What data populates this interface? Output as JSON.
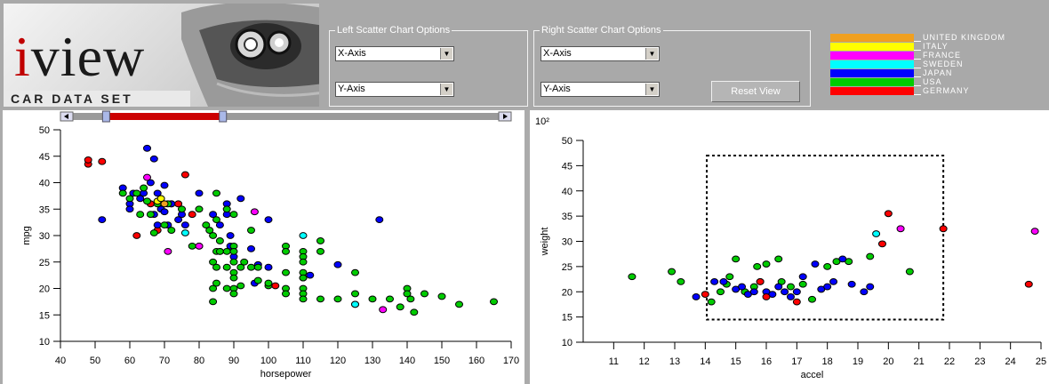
{
  "logo": {
    "word_first": "i",
    "word_rest": "view",
    "subtitle": "CAR DATA SET"
  },
  "left_options": {
    "legend": "Left Scatter Chart Options",
    "x_select": "X-Axis",
    "y_select": "Y-Axis"
  },
  "right_options": {
    "legend": "Right Scatter Chart Options",
    "x_select": "X-Axis",
    "y_select": "Y-Axis",
    "reset_label": "Reset View"
  },
  "origin_legend": [
    {
      "name": "UNITED KINGDOM",
      "color": "#f0a020"
    },
    {
      "name": "ITALY",
      "color": "#ffff00"
    },
    {
      "name": "FRANCE",
      "color": "#ff00ff"
    },
    {
      "name": "SWEDEN",
      "color": "#00ffff"
    },
    {
      "name": "JAPAN",
      "color": "#0000ff"
    },
    {
      "name": "USA",
      "color": "#00cc00"
    },
    {
      "name": "GERMANY",
      "color": "#ff0000"
    }
  ],
  "icons": {
    "scroll_left": "chevron-left-icon",
    "scroll_right": "chevron-right-icon",
    "dropdown": "chevron-down-icon"
  },
  "range_slider": {
    "min": 40,
    "max": 170,
    "selected_min": 50,
    "selected_max": 85
  },
  "chart_data": [
    {
      "type": "scatter",
      "xlabel": "horsepower",
      "ylabel": "mpg",
      "xlim": [
        40,
        170
      ],
      "ylim": [
        10,
        50
      ],
      "xticks": [
        40,
        50,
        60,
        70,
        80,
        90,
        100,
        110,
        120,
        130,
        140,
        150,
        160,
        170
      ],
      "yticks": [
        10,
        15,
        20,
        25,
        30,
        35,
        40,
        45,
        50
      ],
      "series": [
        {
          "color": "#ff0000",
          "points": [
            [
              48,
              43.5
            ],
            [
              48,
              44.3
            ],
            [
              52,
              44
            ],
            [
              62,
              30
            ],
            [
              66,
              36
            ],
            [
              68,
              31
            ],
            [
              72,
              36
            ],
            [
              74,
              36
            ],
            [
              76,
              41.5
            ],
            [
              78,
              34
            ],
            [
              80,
              28
            ],
            [
              102,
              20.5
            ]
          ]
        },
        {
          "color": "#0000ff",
          "points": [
            [
              52,
              33
            ],
            [
              58,
              39
            ],
            [
              60,
              36
            ],
            [
              60,
              35
            ],
            [
              61,
              38
            ],
            [
              63,
              37
            ],
            [
              64,
              38
            ],
            [
              65,
              46.5
            ],
            [
              66,
              40
            ],
            [
              67,
              44.5
            ],
            [
              67,
              34
            ],
            [
              68,
              38
            ],
            [
              68,
              32
            ],
            [
              69,
              35
            ],
            [
              70,
              39.5
            ],
            [
              70,
              34.5
            ],
            [
              71,
              32
            ],
            [
              72,
              36
            ],
            [
              74,
              33
            ],
            [
              75,
              34
            ],
            [
              76,
              32
            ],
            [
              80,
              38
            ],
            [
              84,
              34
            ],
            [
              86,
              32
            ],
            [
              86,
              27
            ],
            [
              88,
              36
            ],
            [
              88,
              34
            ],
            [
              89,
              30
            ],
            [
              89,
              28
            ],
            [
              90,
              26
            ],
            [
              92,
              37
            ],
            [
              95,
              27.5
            ],
            [
              96,
              21
            ],
            [
              97,
              24.5
            ],
            [
              100,
              33
            ],
            [
              100,
              24
            ],
            [
              110,
              22
            ],
            [
              112,
              22.5
            ],
            [
              120,
              24.5
            ],
            [
              132,
              33
            ]
          ]
        },
        {
          "color": "#00cc00",
          "points": [
            [
              58,
              38
            ],
            [
              60,
              37
            ],
            [
              62,
              38
            ],
            [
              63,
              34
            ],
            [
              64,
              39
            ],
            [
              65,
              36.5
            ],
            [
              66,
              34
            ],
            [
              67,
              30.5
            ],
            [
              68,
              36
            ],
            [
              70,
              32
            ],
            [
              71,
              36
            ],
            [
              72,
              31
            ],
            [
              75,
              35
            ],
            [
              78,
              28
            ],
            [
              80,
              35
            ],
            [
              82,
              32
            ],
            [
              83,
              31
            ],
            [
              84,
              30
            ],
            [
              84,
              25
            ],
            [
              84,
              20
            ],
            [
              84,
              17.5
            ],
            [
              85,
              38
            ],
            [
              85,
              33
            ],
            [
              85,
              27
            ],
            [
              85,
              24
            ],
            [
              85,
              21
            ],
            [
              86,
              29
            ],
            [
              86,
              27
            ],
            [
              88,
              35
            ],
            [
              88,
              27
            ],
            [
              88,
              24
            ],
            [
              88,
              20
            ],
            [
              90,
              34
            ],
            [
              90,
              28
            ],
            [
              90,
              27
            ],
            [
              90,
              25
            ],
            [
              90,
              23
            ],
            [
              90,
              22
            ],
            [
              90,
              20
            ],
            [
              90,
              19
            ],
            [
              92,
              24
            ],
            [
              92,
              20.5
            ],
            [
              93,
              25
            ],
            [
              95,
              31
            ],
            [
              95,
              24
            ],
            [
              97,
              24
            ],
            [
              97,
              21.5
            ],
            [
              100,
              20.5
            ],
            [
              100,
              21
            ],
            [
              105,
              28
            ],
            [
              105,
              27
            ],
            [
              105,
              23
            ],
            [
              105,
              20
            ],
            [
              105,
              19
            ],
            [
              110,
              27
            ],
            [
              110,
              26
            ],
            [
              110,
              25
            ],
            [
              110,
              23
            ],
            [
              110,
              22
            ],
            [
              110,
              20
            ],
            [
              110,
              19
            ],
            [
              110,
              18
            ],
            [
              115,
              29
            ],
            [
              115,
              27
            ],
            [
              115,
              18
            ],
            [
              120,
              18
            ],
            [
              125,
              23
            ],
            [
              125,
              19
            ],
            [
              125,
              17
            ],
            [
              130,
              18
            ],
            [
              135,
              18
            ],
            [
              138,
              16.5
            ],
            [
              140,
              20
            ],
            [
              140,
              19
            ],
            [
              141,
              18
            ],
            [
              142,
              15.5
            ],
            [
              145,
              19
            ],
            [
              150,
              18.5
            ],
            [
              155,
              17
            ],
            [
              165,
              17.5
            ]
          ]
        },
        {
          "color": "#ff00ff",
          "points": [
            [
              65,
              41
            ],
            [
              71,
              27
            ],
            [
              80,
              28
            ],
            [
              96,
              34.5
            ],
            [
              133,
              16
            ]
          ]
        },
        {
          "color": "#00ffff",
          "points": [
            [
              76,
              30.5
            ],
            [
              110,
              30
            ],
            [
              125,
              17
            ]
          ]
        },
        {
          "color": "#ffff00",
          "points": [
            [
              68,
              36.5
            ],
            [
              69,
              37
            ]
          ]
        },
        {
          "color": "#f0a020",
          "points": [
            [
              70,
              36
            ]
          ]
        }
      ]
    },
    {
      "type": "scatter",
      "xlabel": "accel",
      "ylabel": "weight",
      "y_multiplier_label": "10²",
      "xlim": [
        10,
        25
      ],
      "ylim": [
        10,
        50
      ],
      "xticks": [
        11,
        12,
        13,
        14,
        15,
        16,
        17,
        18,
        19,
        20,
        21,
        22,
        23,
        24,
        25
      ],
      "yticks": [
        10,
        15,
        20,
        25,
        30,
        35,
        40,
        45,
        50
      ],
      "selection_box": {
        "x": [
          14.05,
          21.8
        ],
        "y": [
          14.5,
          47
        ]
      },
      "series": [
        {
          "color": "#00cc00",
          "points": [
            [
              11.6,
              23
            ],
            [
              12.9,
              24
            ],
            [
              13.2,
              22
            ],
            [
              14.2,
              18
            ],
            [
              14.5,
              20
            ],
            [
              14.7,
              21.5
            ],
            [
              14.8,
              23
            ],
            [
              15,
              26.5
            ],
            [
              15.3,
              20
            ],
            [
              15.6,
              21
            ],
            [
              15.7,
              25
            ],
            [
              16,
              25.5
            ],
            [
              16.4,
              26.5
            ],
            [
              16.5,
              22
            ],
            [
              16.8,
              21
            ],
            [
              17.2,
              21.5
            ],
            [
              17.5,
              18.5
            ],
            [
              18,
              25
            ],
            [
              18.3,
              26
            ],
            [
              18.7,
              26
            ],
            [
              19.4,
              27
            ],
            [
              20.7,
              24
            ]
          ]
        },
        {
          "color": "#0000ff",
          "points": [
            [
              13.7,
              19
            ],
            [
              14.3,
              22
            ],
            [
              14.6,
              22
            ],
            [
              15,
              20.5
            ],
            [
              15.2,
              21
            ],
            [
              15.4,
              19.5
            ],
            [
              15.6,
              20
            ],
            [
              15.8,
              22
            ],
            [
              16,
              20
            ],
            [
              16.2,
              19.5
            ],
            [
              16.4,
              21
            ],
            [
              16.6,
              20
            ],
            [
              16.8,
              19
            ],
            [
              17,
              20
            ],
            [
              17.2,
              23
            ],
            [
              17.6,
              25.5
            ],
            [
              17.8,
              20.5
            ],
            [
              18,
              21
            ],
            [
              18.2,
              22
            ],
            [
              18.5,
              26.5
            ],
            [
              18.8,
              21.5
            ],
            [
              19.2,
              20
            ],
            [
              19.4,
              21
            ]
          ]
        },
        {
          "color": "#ff0000",
          "points": [
            [
              14,
              19.5
            ],
            [
              15.8,
              22
            ],
            [
              16,
              19
            ],
            [
              17,
              18
            ],
            [
              19.8,
              29.5
            ],
            [
              20,
              35.5
            ],
            [
              21.8,
              32.5
            ],
            [
              24.6,
              21.5
            ]
          ]
        },
        {
          "color": "#ff00ff",
          "points": [
            [
              20.4,
              32.5
            ],
            [
              24.8,
              32
            ]
          ]
        },
        {
          "color": "#00ffff",
          "points": [
            [
              19.6,
              31.5
            ]
          ]
        }
      ]
    }
  ]
}
